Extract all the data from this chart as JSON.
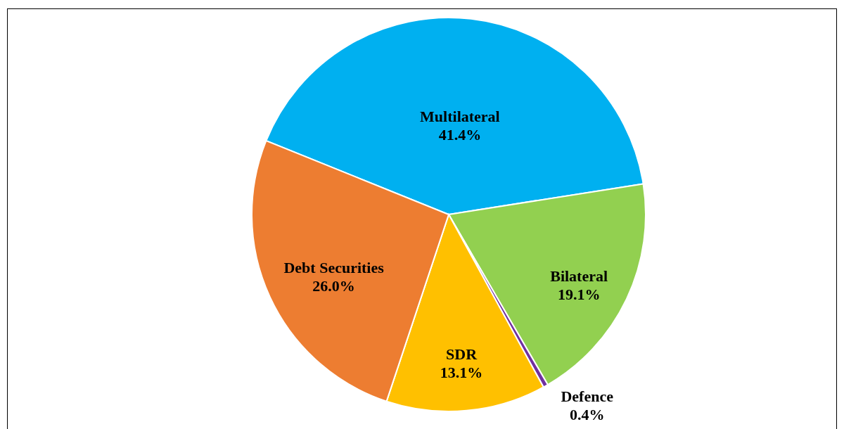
{
  "chart_data": {
    "type": "pie",
    "categories": [
      "Multilateral",
      "Bilateral",
      "Defence",
      "SDR",
      "Debt Securities"
    ],
    "values": [
      41.4,
      19.1,
      0.4,
      13.1,
      26.0
    ],
    "value_labels": [
      "41.4%",
      "19.1%",
      "0.4%",
      "13.1%",
      "26.0%"
    ],
    "colors": [
      "#00b0f0",
      "#92d050",
      "#7030a0",
      "#ffc000",
      "#ed7d31"
    ]
  }
}
